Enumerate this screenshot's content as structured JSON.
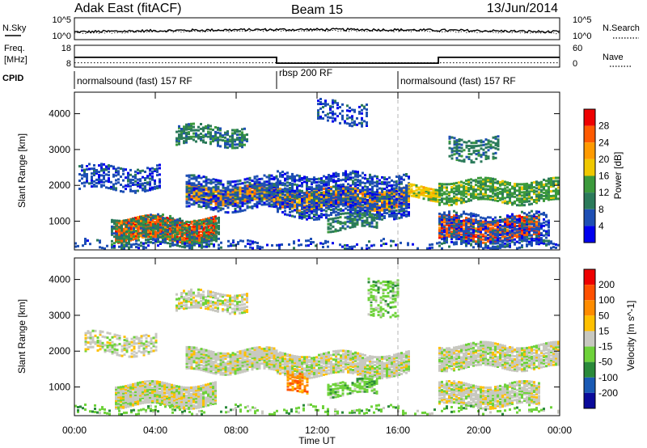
{
  "header": {
    "title": "Adak East (fitACF)",
    "beam": "Beam 15",
    "date": "13/Jun/2014"
  },
  "noise_panel": {
    "left_label": "N.Sky",
    "right_label": "N.Search",
    "left_ticks": [
      "10^5",
      "10^0"
    ],
    "right_ticks": [
      "10^5",
      "10^0"
    ]
  },
  "freq_panel": {
    "left_label_1": "Freq.",
    "left_label_2": "[MHz]",
    "right_label": "Nave",
    "left_ticks": [
      "18",
      "8"
    ],
    "right_ticks": [
      "60",
      "0"
    ],
    "freq_steps": [
      {
        "t0": 0,
        "t1": 10,
        "value": 12.5
      },
      {
        "t0": 10,
        "t1": 18,
        "value": 9.8
      },
      {
        "t0": 18,
        "t1": 24,
        "value": 12.5
      }
    ],
    "nave_steps": [
      {
        "t0": 0,
        "t1": 24,
        "value": 12
      }
    ]
  },
  "cpid": {
    "label": "CPID",
    "segments": [
      {
        "t0": 0,
        "t1": 10,
        "name": "normalsound (fast) 157 RF"
      },
      {
        "t0": 10,
        "t1": 16,
        "name": "rbsp 200 RF"
      },
      {
        "t0": 16,
        "t1": 24,
        "name": "normalsound (fast) 157 RF"
      }
    ]
  },
  "colors": {
    "power": [
      "#0000ee",
      "#1e4fb4",
      "#2b7a5a",
      "#3c9a3c",
      "#f0c800",
      "#ff9a00",
      "#ff5a00",
      "#ee0000"
    ],
    "velocity": [
      "#0a0a9a",
      "#1a5ab4",
      "#2a8a3a",
      "#6ed23a",
      "#c8c8c0",
      "#ffc000",
      "#ff8c00",
      "#ff5000",
      "#ee0000"
    ],
    "ground_scatter": "#c8c8c0"
  },
  "chart_data": [
    {
      "type": "heatmap",
      "title": "Power",
      "ylabel": "Slant Range [km]",
      "xlabel": "Time UT",
      "xlim": [
        0,
        24
      ],
      "ylim": [
        200,
        4600
      ],
      "yticks": [
        "1000",
        "2000",
        "3000",
        "4000"
      ],
      "colorbar_label": "Power [dB]",
      "colorbar_ticks": [
        "4",
        "8",
        "12",
        "16",
        "20",
        "24",
        "28"
      ],
      "bands": [
        {
          "t0": 0.2,
          "t1": 4.2,
          "r0": 1850,
          "r1": 2500,
          "lvl": 1,
          "density": 0.45
        },
        {
          "t0": 2.0,
          "t1": 7.0,
          "r0": 450,
          "r1": 1050,
          "lvl": 6,
          "density": 0.9
        },
        {
          "t0": 1.8,
          "t1": 7.2,
          "r0": 300,
          "r1": 1100,
          "lvl": 2,
          "density": 0.5
        },
        {
          "t0": 5.5,
          "t1": 10.0,
          "r0": 1500,
          "r1": 1950,
          "lvl": 5,
          "density": 0.9
        },
        {
          "t0": 5.5,
          "t1": 10.0,
          "r0": 1300,
          "r1": 2200,
          "lvl": 1,
          "density": 0.55
        },
        {
          "t0": 5.0,
          "t1": 8.5,
          "r0": 3100,
          "r1": 3600,
          "lvl": 2,
          "density": 0.6
        },
        {
          "t0": 10.0,
          "t1": 16.5,
          "r0": 1350,
          "r1": 1850,
          "lvl": 5,
          "density": 0.85
        },
        {
          "t0": 10.0,
          "t1": 16.5,
          "r0": 1100,
          "r1": 2300,
          "lvl": 1,
          "density": 0.6
        },
        {
          "t0": 12.5,
          "t1": 15.0,
          "r0": 750,
          "r1": 1150,
          "lvl": 2,
          "density": 0.5
        },
        {
          "t0": 12.0,
          "t1": 14.5,
          "r0": 3700,
          "r1": 4300,
          "lvl": 1,
          "density": 0.35
        },
        {
          "t0": 16.5,
          "t1": 18.0,
          "r0": 1600,
          "r1": 1950,
          "lvl": 4,
          "density": 0.8
        },
        {
          "t0": 18.0,
          "t1": 24.0,
          "r0": 1500,
          "r1": 2100,
          "lvl": 3,
          "density": 0.7
        },
        {
          "t0": 18.0,
          "t1": 23.0,
          "r0": 450,
          "r1": 1050,
          "lvl": 6,
          "density": 0.8
        },
        {
          "t0": 18.0,
          "t1": 23.5,
          "r0": 300,
          "r1": 1200,
          "lvl": 1,
          "density": 0.45
        },
        {
          "t0": 18.5,
          "t1": 21.0,
          "r0": 2700,
          "r1": 3300,
          "lvl": 2,
          "density": 0.45
        },
        {
          "t0": 0.0,
          "t1": 24.0,
          "r0": 200,
          "r1": 420,
          "lvl": 1,
          "density": 0.3
        }
      ]
    },
    {
      "type": "heatmap",
      "title": "Velocity",
      "ylabel": "Slant Range [km]",
      "xlabel": "Time UT",
      "xlim": [
        0,
        24
      ],
      "ylim": [
        200,
        4600
      ],
      "yticks": [
        "1000",
        "2000",
        "3000",
        "4000"
      ],
      "xticks": [
        "00:00",
        "04:00",
        "08:00",
        "12:00",
        "16:00",
        "20:00",
        "00:00"
      ],
      "colorbar_label": "Velocity [m s^-1]",
      "colorbar_ticks": [
        "200",
        "100",
        "50",
        "15",
        "-15",
        "-50",
        "-100",
        "-200"
      ],
      "bands": [
        {
          "t0": 2.0,
          "t1": 7.0,
          "r0": 450,
          "r1": 1050,
          "lvl": 4,
          "density": 0.95
        },
        {
          "t0": 5.5,
          "t1": 10.0,
          "r0": 1400,
          "r1": 2000,
          "lvl": 4,
          "density": 0.9
        },
        {
          "t0": 0.5,
          "t1": 4.0,
          "r0": 1900,
          "r1": 2450,
          "lvl": 4,
          "density": 0.5
        },
        {
          "t0": 5.0,
          "t1": 8.5,
          "r0": 3100,
          "r1": 3600,
          "lvl": 4,
          "density": 0.6
        },
        {
          "t0": 10.0,
          "t1": 16.5,
          "r0": 1300,
          "r1": 1900,
          "lvl": 4,
          "density": 0.85
        },
        {
          "t0": 10.5,
          "t1": 11.5,
          "r0": 800,
          "r1": 1300,
          "lvl": 6,
          "density": 0.6
        },
        {
          "t0": 12.5,
          "t1": 15.0,
          "r0": 750,
          "r1": 1150,
          "lvl": 3,
          "density": 0.6
        },
        {
          "t0": 14.5,
          "t1": 16.0,
          "r0": 3000,
          "r1": 4000,
          "lvl": 3,
          "density": 0.4
        },
        {
          "t0": 18.0,
          "t1": 24.0,
          "r0": 1500,
          "r1": 2150,
          "lvl": 4,
          "density": 0.85
        },
        {
          "t0": 18.0,
          "t1": 23.0,
          "r0": 450,
          "r1": 1050,
          "lvl": 4,
          "density": 0.85
        },
        {
          "t0": 0.0,
          "t1": 24.0,
          "r0": 200,
          "r1": 420,
          "lvl": 3,
          "density": 0.25
        }
      ]
    }
  ]
}
